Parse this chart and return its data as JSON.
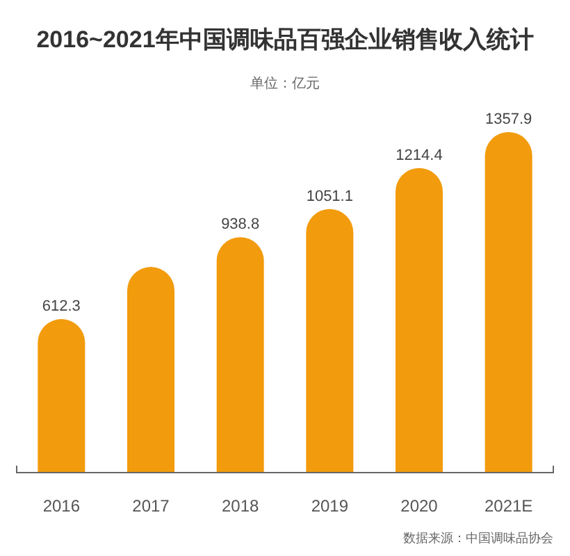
{
  "chart_data": {
    "type": "bar",
    "title": "2016~2021年中国调味品百强企业销售收入统计",
    "subtitle": "单位：亿元",
    "categories": [
      "2016",
      "2017",
      "2018",
      "2019",
      "2020",
      "2021E"
    ],
    "values": [
      612.3,
      820,
      938.8,
      1051.1,
      1214.4,
      1357.9
    ],
    "value_labels": [
      "612.3",
      null,
      "938.8",
      "1051.1",
      "1214.4",
      "1357.9"
    ],
    "color": "#f29b0c",
    "annotations": [
      "数据来源：中国调味品协会"
    ]
  }
}
